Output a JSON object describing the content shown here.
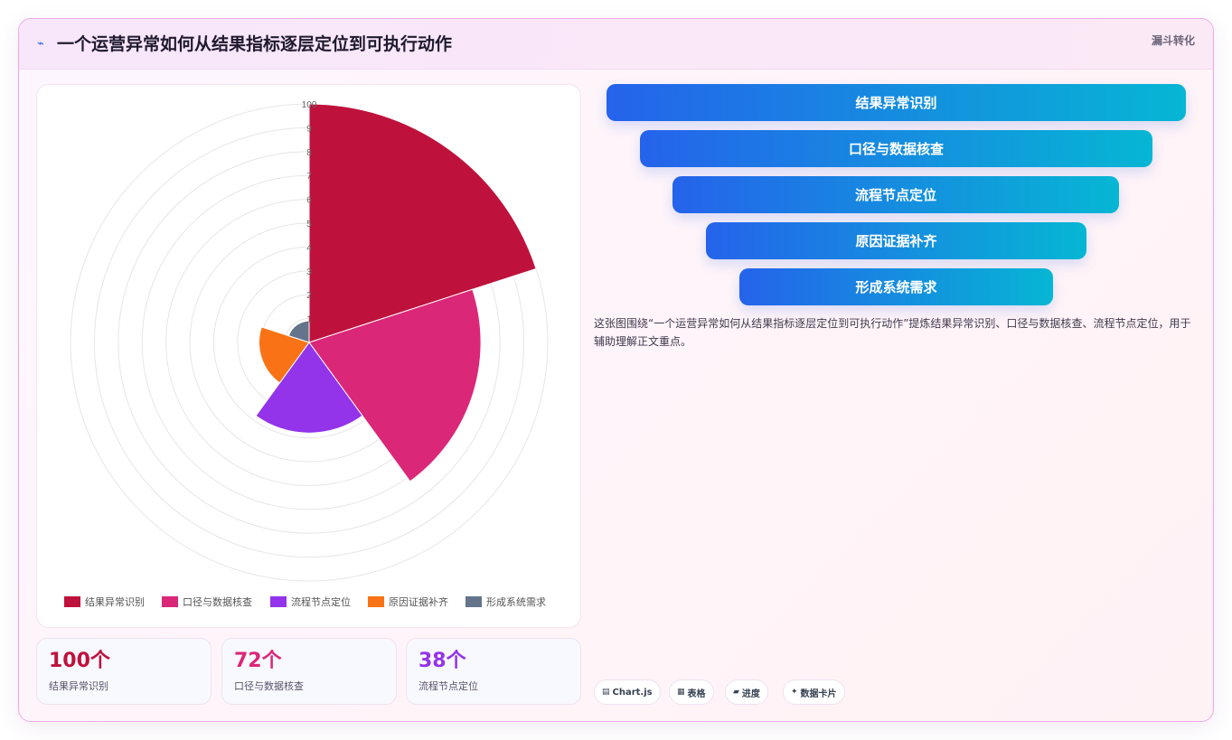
{
  "header": {
    "icon": "lightning-icon",
    "title": "一个运营异常如何从结果指标逐层定位到可执行动作",
    "tag": "漏斗转化"
  },
  "chart_data": {
    "type": "polarArea",
    "categories": [
      "结果异常识别",
      "口径与数据核查",
      "流程节点定位",
      "原因证据补齐",
      "形成系统需求"
    ],
    "values": [
      100,
      72,
      38,
      21,
      9
    ],
    "colors": [
      "#be123c",
      "#db2777",
      "#9333ea",
      "#f97316",
      "#64748b"
    ],
    "r_ticks": [
      "1",
      "2",
      "3",
      "4",
      "5",
      "6",
      "7",
      "8",
      "9",
      "100"
    ],
    "r_range": [
      0,
      100
    ],
    "legend_position": "bottom"
  },
  "stats": [
    {
      "value": "100个",
      "label": "结果异常识别",
      "color": "#be123c"
    },
    {
      "value": "72个",
      "label": "口径与数据核查",
      "color": "#db2777"
    },
    {
      "value": "38个",
      "label": "流程节点定位",
      "color": "#9333ea"
    }
  ],
  "funnel": [
    {
      "label": "结果异常识别"
    },
    {
      "label": "口径与数据核查"
    },
    {
      "label": "流程节点定位"
    },
    {
      "label": "原因证据补齐"
    },
    {
      "label": "形成系统需求"
    }
  ],
  "description": "这张图围绕“一个运营异常如何从结果指标逐层定位到可执行动作”提炼结果异常识别、口径与数据核查、流程节点定位，用于辅助理解正文重点。",
  "chips": [
    {
      "icon": "chart-icon",
      "glyph": "▤",
      "label": "Chart.js"
    },
    {
      "icon": "table-icon",
      "glyph": "▦",
      "label": "表格"
    },
    {
      "icon": "progress-icon",
      "glyph": "▰",
      "label": "进度"
    },
    {
      "icon": "sparkle-icon",
      "glyph": "✦",
      "label": "数据卡片"
    }
  ]
}
